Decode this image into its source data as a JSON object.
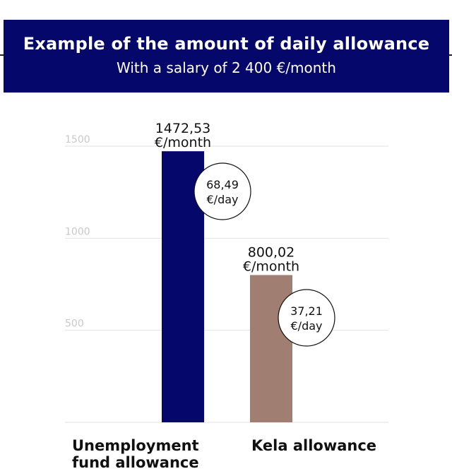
{
  "header": {
    "title": "Example of the amount of daily allowance",
    "subtitle": "With a salary of 2 400 €/month"
  },
  "colors": {
    "banner": "#05086a",
    "grid": "#e2e2e2",
    "tick": "#c9c9c9"
  },
  "chart_data": {
    "type": "bar",
    "title": "Example of the amount of daily allowance",
    "subtitle": "With a salary of 2 400 €/month",
    "categories": [
      "Unemployment fund allowance",
      "Kela allowance"
    ],
    "category_labels": [
      [
        "Unemployment",
        "fund allowance"
      ],
      [
        "Kela allowance"
      ]
    ],
    "values": [
      1472.53,
      800.02
    ],
    "value_labels": [
      [
        "1472,53",
        "€/month"
      ],
      [
        "800,02",
        "€/month"
      ]
    ],
    "daily_labels": [
      [
        "68,49",
        "€/day"
      ],
      [
        "37,21",
        "€/day"
      ]
    ],
    "daily_values": [
      68.49,
      37.21
    ],
    "bar_colors": [
      "#05086a",
      "#a07e72"
    ],
    "yticks": [
      500,
      1000,
      1500
    ],
    "ylim": [
      0,
      1500
    ],
    "grid": true,
    "legend": "none",
    "xlabel": "",
    "ylabel": ""
  }
}
